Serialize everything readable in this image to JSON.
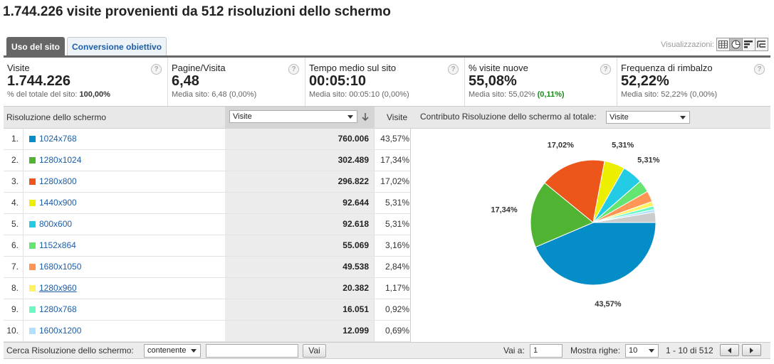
{
  "headline": "1.744.226 visite provenienti da 512 risoluzioni dello schermo",
  "tabs": [
    {
      "label": "Uso del sito",
      "active": true
    },
    {
      "label": "Conversione obiettivo",
      "active": false
    }
  ],
  "views": {
    "label": "Visualizzazioni:",
    "icons": [
      "table-view-icon",
      "pie-view-icon",
      "performance-view-icon",
      "pivot-view-icon"
    ],
    "active": "pie-view-icon"
  },
  "metrics": [
    {
      "label": "Visite",
      "value": "1.744.226",
      "sub_prefix": "% del totale del sito: ",
      "sub_value": "100,00%",
      "sub_delta": ""
    },
    {
      "label": "Pagine/Visita",
      "value": "6,48",
      "sub_prefix": "Media sito: ",
      "sub_value": "6,48 (0,00%)",
      "sub_delta": ""
    },
    {
      "label": "Tempo medio sul sito",
      "value": "00:05:10",
      "sub_prefix": "Media sito: ",
      "sub_value": "00:05:10 (0,00%)",
      "sub_delta": ""
    },
    {
      "label": "% visite nuove",
      "value": "55,08%",
      "sub_prefix": "Media sito: ",
      "sub_value": "55,02%",
      "sub_delta": "(0,11%)"
    },
    {
      "label": "Frequenza di rimbalzo",
      "value": "52,22%",
      "sub_prefix": "Media sito: ",
      "sub_value": "52,22% (0,00%)",
      "sub_delta": ""
    }
  ],
  "table": {
    "col_resolution": "Risoluzione dello schermo",
    "sort_select": "Visite",
    "col_visits": "Visite",
    "contrib_label": "Contributo Risoluzione dello schermo al totale:",
    "contrib_select": "Visite",
    "rows": [
      {
        "rank": "1.",
        "name": "1024x768",
        "visits": "760.006",
        "pct": "43,57%",
        "color": "#058dc7"
      },
      {
        "rank": "2.",
        "name": "1280x1024",
        "visits": "302.489",
        "pct": "17,34%",
        "color": "#50b432"
      },
      {
        "rank": "3.",
        "name": "1280x800",
        "visits": "296.822",
        "pct": "17,02%",
        "color": "#ed561b"
      },
      {
        "rank": "4.",
        "name": "1440x900",
        "visits": "92.644",
        "pct": "5,31%",
        "color": "#edef00"
      },
      {
        "rank": "5.",
        "name": "800x600",
        "visits": "92.618",
        "pct": "5,31%",
        "color": "#24cbe5"
      },
      {
        "rank": "6.",
        "name": "1152x864",
        "visits": "55.069",
        "pct": "3,16%",
        "color": "#64e572"
      },
      {
        "rank": "7.",
        "name": "1680x1050",
        "visits": "49.538",
        "pct": "2,84%",
        "color": "#ff9655"
      },
      {
        "rank": "8.",
        "name": "1280x960",
        "visits": "20.382",
        "pct": "1,17%",
        "color": "#fff263"
      },
      {
        "rank": "9.",
        "name": "1280x768",
        "visits": "16.051",
        "pct": "0,92%",
        "color": "#6af9c4"
      },
      {
        "rank": "10.",
        "name": "1600x1200",
        "visits": "12.099",
        "pct": "0,69%",
        "color": "#b2deff"
      }
    ]
  },
  "pie": {
    "slices": [
      43.57,
      17.34,
      17.02,
      5.31,
      5.31,
      3.16,
      2.84,
      1.17,
      0.92,
      0.69,
      2.67
    ],
    "colors": [
      "#058dc7",
      "#50b432",
      "#ed561b",
      "#edef00",
      "#24cbe5",
      "#64e572",
      "#ff9655",
      "#fff263",
      "#6af9c4",
      "#b2deff",
      "#cccccc"
    ],
    "labels": {
      "blue": "43,57%",
      "green": "17,34%",
      "orange": "17,02%",
      "yellow": "5,31%",
      "cyan": "5,31%"
    }
  },
  "footer": {
    "search_label": "Cerca Risoluzione dello schermo:",
    "search_mode": "contenente",
    "search_value": "",
    "go_label": "Vai",
    "goto_label": "Vai a:",
    "goto_value": "1",
    "rows_label": "Mostra righe:",
    "rows_value": "10",
    "range": "1 - 10 di 512"
  }
}
